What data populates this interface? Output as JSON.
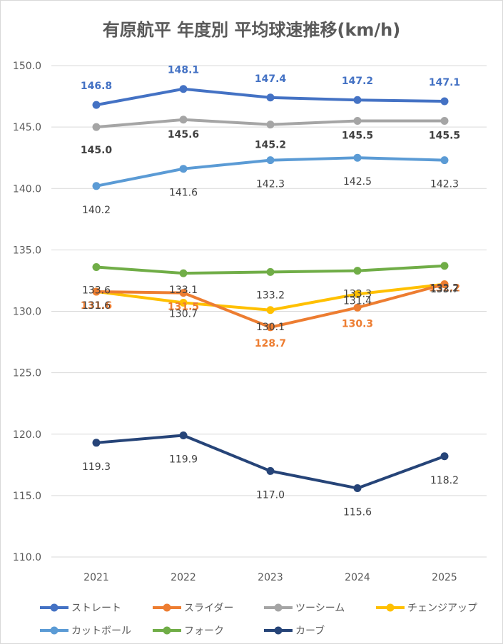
{
  "chart_data": {
    "type": "line",
    "title": "有原航平 年度別 平均球速推移(km/h)",
    "categories": [
      "2021",
      "2022",
      "2023",
      "2024",
      "2025"
    ],
    "ylim": [
      110.0,
      150.0
    ],
    "yticks": [
      "110.0",
      "115.0",
      "120.0",
      "125.0",
      "130.0",
      "135.0",
      "140.0",
      "145.0",
      "150.0"
    ],
    "grid": true,
    "legend_position": "bottom",
    "series": [
      {
        "name": "ストレート",
        "color": "#4472C4",
        "values": [
          146.8,
          148.1,
          147.4,
          147.2,
          147.1
        ],
        "labels": [
          "146.8",
          "148.1",
          "147.4",
          "147.2",
          "147.1"
        ],
        "label_color": "#4472C4",
        "label_bold": true
      },
      {
        "name": "スライダー",
        "color": "#ED7D31",
        "values": [
          131.6,
          131.5,
          128.7,
          130.3,
          132.2
        ],
        "labels": [
          "131.6",
          "131.5",
          "128.7",
          "130.3",
          "132.2"
        ],
        "label_color": "#ED7D31",
        "label_bold": true
      },
      {
        "name": "ツーシーム",
        "color": "#A5A5A5",
        "values": [
          145.0,
          145.6,
          145.2,
          145.5,
          145.5
        ],
        "labels": [
          "145.0",
          "145.6",
          "145.2",
          "145.5",
          "145.5"
        ],
        "label_color": "#404040",
        "label_bold": true
      },
      {
        "name": "チェンジアップ",
        "color": "#FFC000",
        "values": [
          131.6,
          130.7,
          130.1,
          131.4,
          132.2
        ],
        "labels": [
          "131.6",
          "130.7",
          "130.1",
          "131.4",
          "132.2"
        ],
        "label_color": "#404040",
        "label_bold": false
      },
      {
        "name": "カットボール",
        "color": "#5B9BD5",
        "values": [
          140.2,
          141.6,
          142.3,
          142.5,
          142.3
        ],
        "labels": [
          "140.2",
          "141.6",
          "142.3",
          "142.5",
          "142.3"
        ],
        "label_color": "#404040",
        "label_bold": false
      },
      {
        "name": "フォーク",
        "color": "#70AD47",
        "values": [
          133.6,
          133.1,
          133.2,
          133.3,
          133.7
        ],
        "labels": [
          "133.6",
          "133.1",
          "133.2",
          "133.3",
          "133.7"
        ],
        "label_color": "#404040",
        "label_bold": false
      },
      {
        "name": "カーブ",
        "color": "#264478",
        "values": [
          119.3,
          119.9,
          117.0,
          115.6,
          118.2
        ],
        "labels": [
          "119.3",
          "119.9",
          "117.0",
          "115.6",
          "118.2"
        ],
        "label_color": "#404040",
        "label_bold": false
      }
    ]
  }
}
